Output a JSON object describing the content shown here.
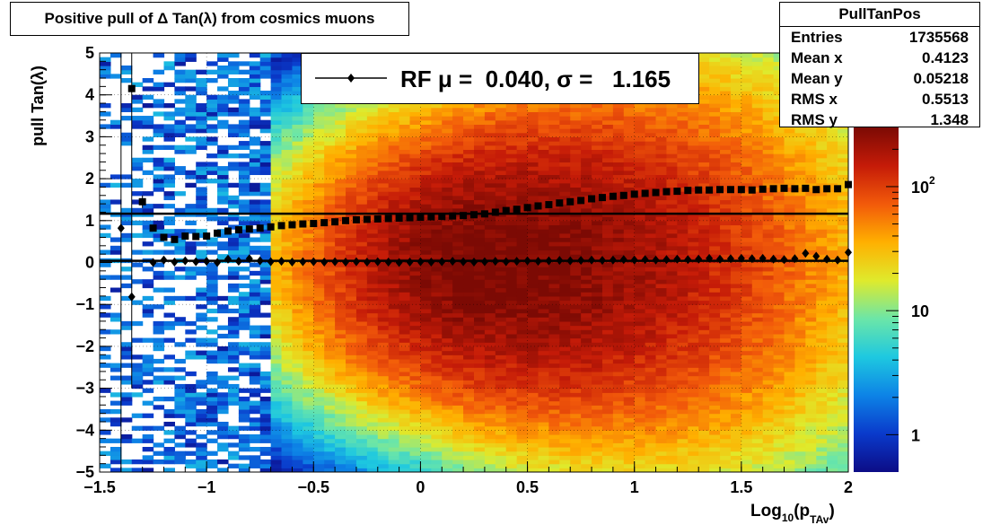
{
  "title": "Positive pull of Δ Tan(λ) from cosmics muons",
  "stats": {
    "name": "PullTanPos",
    "rows": [
      {
        "label": "Entries",
        "value": "1735568"
      },
      {
        "label": "Mean x",
        "value": "0.4123"
      },
      {
        "label": "Mean y",
        "value": "0.05218"
      },
      {
        "label": "RMS x",
        "value": "0.5513"
      },
      {
        "label": "RMS y",
        "value": "1.348"
      }
    ]
  },
  "legend": {
    "text": "RF μ =  0.040, σ =   1.165"
  },
  "colorbar": {
    "labels": [
      {
        "text": "1",
        "value": 1
      },
      {
        "text": "10",
        "value": 10
      },
      {
        "text": "10",
        "sup": "2",
        "value": 100
      }
    ]
  },
  "chart_data": {
    "type": "heatmap",
    "title": "Positive pull of Δ Tan(λ) from cosmics muons",
    "xlabel": "Log",
    "xlabel_sub": "10",
    "xlabel_rest": "(p",
    "xlabel_sub2": "TAv",
    "xlabel_close": ")",
    "ylabel": "pull Tan(λ)",
    "xlim": [
      -1.5,
      2
    ],
    "ylim": [
      -5,
      5
    ],
    "xticks": [
      {
        "v": -1.5,
        "t": "−1.5"
      },
      {
        "v": -1,
        "t": "−1"
      },
      {
        "v": -0.5,
        "t": "−0.5"
      },
      {
        "v": 0,
        "t": "0"
      },
      {
        "v": 0.5,
        "t": "0.5"
      },
      {
        "v": 1,
        "t": "1"
      },
      {
        "v": 1.5,
        "t": "1.5"
      },
      {
        "v": 2,
        "t": "2"
      }
    ],
    "yticks": [
      {
        "v": -5,
        "t": "−5"
      },
      {
        "v": -4,
        "t": "−4"
      },
      {
        "v": -3,
        "t": "−3"
      },
      {
        "v": -2,
        "t": "−2"
      },
      {
        "v": -1,
        "t": "−1"
      },
      {
        "v": 0,
        "t": "0"
      },
      {
        "v": 1,
        "t": "1"
      },
      {
        "v": 2,
        "t": "2"
      },
      {
        "v": 3,
        "t": "3"
      },
      {
        "v": 4,
        "t": "4"
      },
      {
        "v": 5,
        "t": "5"
      }
    ],
    "grid": true,
    "z_scale": "log",
    "zlim": [
      0.5,
      300
    ],
    "density_peak": {
      "x": 0.3,
      "y": 0.0
    },
    "colormap": [
      "#0c0c86",
      "#0a3acb",
      "#0d83e6",
      "#1ec8e0",
      "#6be6a8",
      "#dfea2c",
      "#ffb000",
      "#f25a0a",
      "#c51b08",
      "#7c0a04"
    ],
    "series": [
      {
        "name": "sigma",
        "marker": "square",
        "points": [
          [
            -1.35,
            4.15
          ],
          [
            -1.3,
            1.45
          ],
          [
            -1.25,
            0.82
          ],
          [
            -1.2,
            0.6
          ],
          [
            -1.15,
            0.55
          ],
          [
            -1.1,
            0.63
          ],
          [
            -1.05,
            0.62
          ],
          [
            -1.0,
            0.63
          ],
          [
            -0.95,
            0.7
          ],
          [
            -0.9,
            0.75
          ],
          [
            -0.85,
            0.78
          ],
          [
            -0.8,
            0.8
          ],
          [
            -0.75,
            0.82
          ],
          [
            -0.7,
            0.85
          ],
          [
            -0.65,
            0.88
          ],
          [
            -0.6,
            0.9
          ],
          [
            -0.55,
            0.92
          ],
          [
            -0.5,
            0.93
          ],
          [
            -0.45,
            0.95
          ],
          [
            -0.4,
            0.97
          ],
          [
            -0.35,
            1.0
          ],
          [
            -0.3,
            1.02
          ],
          [
            -0.25,
            1.03
          ],
          [
            -0.2,
            1.04
          ],
          [
            -0.15,
            1.05
          ],
          [
            -0.1,
            1.06
          ],
          [
            -0.05,
            1.07
          ],
          [
            0.0,
            1.08
          ],
          [
            0.05,
            1.09
          ],
          [
            0.1,
            1.1
          ],
          [
            0.15,
            1.11
          ],
          [
            0.2,
            1.12
          ],
          [
            0.25,
            1.14
          ],
          [
            0.3,
            1.16
          ],
          [
            0.35,
            1.2
          ],
          [
            0.4,
            1.24
          ],
          [
            0.45,
            1.27
          ],
          [
            0.5,
            1.31
          ],
          [
            0.55,
            1.35
          ],
          [
            0.6,
            1.38
          ],
          [
            0.65,
            1.42
          ],
          [
            0.7,
            1.45
          ],
          [
            0.75,
            1.48
          ],
          [
            0.8,
            1.52
          ],
          [
            0.85,
            1.55
          ],
          [
            0.9,
            1.58
          ],
          [
            0.95,
            1.6
          ],
          [
            1.0,
            1.63
          ],
          [
            1.05,
            1.65
          ],
          [
            1.1,
            1.67
          ],
          [
            1.15,
            1.69
          ],
          [
            1.2,
            1.7
          ],
          [
            1.25,
            1.72
          ],
          [
            1.3,
            1.73
          ],
          [
            1.35,
            1.73
          ],
          [
            1.4,
            1.74
          ],
          [
            1.45,
            1.74
          ],
          [
            1.5,
            1.74
          ],
          [
            1.55,
            1.73
          ],
          [
            1.6,
            1.75
          ],
          [
            1.65,
            1.76
          ],
          [
            1.7,
            1.77
          ],
          [
            1.75,
            1.76
          ],
          [
            1.8,
            1.77
          ],
          [
            1.85,
            1.74
          ],
          [
            1.9,
            1.76
          ],
          [
            1.95,
            1.76
          ],
          [
            2.0,
            1.86
          ]
        ]
      },
      {
        "name": "mean",
        "marker": "diamond",
        "points": [
          [
            -1.4,
            0.82
          ],
          [
            -1.35,
            -0.82
          ],
          [
            -1.25,
            0.0
          ],
          [
            -1.2,
            0.06
          ],
          [
            -1.15,
            0.01
          ],
          [
            -1.1,
            0.04
          ],
          [
            -1.05,
            0.02
          ],
          [
            -1.0,
            0.03
          ],
          [
            -0.95,
            0.0
          ],
          [
            -0.9,
            0.08
          ],
          [
            -0.85,
            0.03
          ],
          [
            -0.8,
            0.09
          ],
          [
            -0.75,
            0.04
          ],
          [
            -0.7,
            0.02
          ],
          [
            -0.65,
            0.03
          ],
          [
            -0.6,
            0.01
          ],
          [
            -0.55,
            0.02
          ],
          [
            -0.5,
            0.02
          ],
          [
            -0.45,
            0.01
          ],
          [
            -0.4,
            0.02
          ],
          [
            -0.35,
            0.01
          ],
          [
            -0.3,
            0.02
          ],
          [
            -0.25,
            0.01
          ],
          [
            -0.2,
            0.02
          ],
          [
            -0.15,
            0.01
          ],
          [
            -0.1,
            0.0
          ],
          [
            -0.05,
            0.01
          ],
          [
            0.0,
            0.02
          ],
          [
            0.05,
            0.01
          ],
          [
            0.1,
            0.02
          ],
          [
            0.15,
            0.03
          ],
          [
            0.2,
            0.02
          ],
          [
            0.25,
            0.01
          ],
          [
            0.3,
            0.02
          ],
          [
            0.35,
            0.03
          ],
          [
            0.4,
            0.02
          ],
          [
            0.45,
            0.03
          ],
          [
            0.5,
            0.04
          ],
          [
            0.55,
            0.03
          ],
          [
            0.6,
            0.04
          ],
          [
            0.65,
            0.05
          ],
          [
            0.7,
            0.04
          ],
          [
            0.75,
            0.05
          ],
          [
            0.8,
            0.06
          ],
          [
            0.85,
            0.05
          ],
          [
            0.9,
            0.06
          ],
          [
            0.95,
            0.07
          ],
          [
            1.0,
            0.06
          ],
          [
            1.05,
            0.07
          ],
          [
            1.1,
            0.06
          ],
          [
            1.15,
            0.07
          ],
          [
            1.2,
            0.08
          ],
          [
            1.25,
            0.07
          ],
          [
            1.3,
            0.08
          ],
          [
            1.35,
            0.1
          ],
          [
            1.4,
            0.08
          ],
          [
            1.45,
            0.09
          ],
          [
            1.5,
            0.1
          ],
          [
            1.55,
            0.09
          ],
          [
            1.6,
            0.1
          ],
          [
            1.65,
            0.08
          ],
          [
            1.7,
            0.07
          ],
          [
            1.75,
            0.09
          ],
          [
            1.8,
            0.22
          ],
          [
            1.85,
            0.15
          ],
          [
            1.9,
            0.08
          ],
          [
            1.95,
            0.06
          ],
          [
            2.0,
            0.24
          ]
        ]
      }
    ],
    "fit_lines": [
      {
        "name": "mu",
        "y": 0.04
      },
      {
        "name": "sigma",
        "y": 1.165
      }
    ]
  }
}
